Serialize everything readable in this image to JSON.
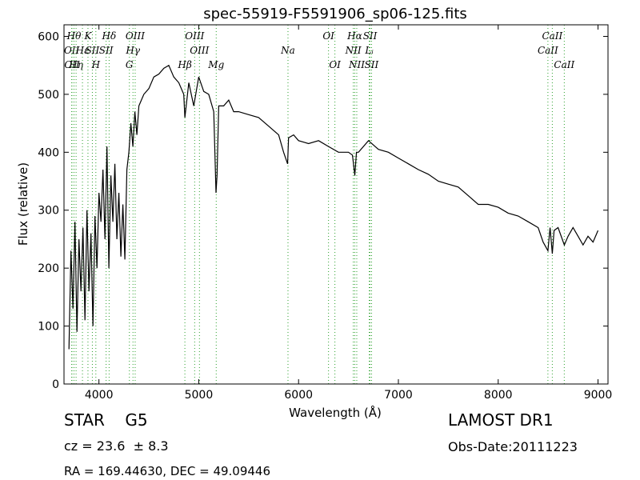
{
  "chart_data": {
    "type": "line",
    "title": "spec-55919-F5591906_sp06-125.fits",
    "xlabel": "Wavelength (Å)",
    "ylabel": "Flux (relative)",
    "xlim": [
      3650,
      9100
    ],
    "ylim": [
      0,
      620
    ],
    "xticks": [
      4000,
      5000,
      6000,
      7000,
      8000,
      9000
    ],
    "yticks": [
      0,
      100,
      200,
      300,
      400,
      500,
      600
    ],
    "grid": false,
    "line_color": "#000000",
    "marker_color": "#2ca02c",
    "spectrum": {
      "x": [
        3700,
        3720,
        3740,
        3760,
        3780,
        3800,
        3820,
        3840,
        3860,
        3880,
        3900,
        3920,
        3940,
        3960,
        3980,
        4000,
        4020,
        4040,
        4060,
        4080,
        4100,
        4120,
        4140,
        4160,
        4180,
        4200,
        4220,
        4240,
        4260,
        4280,
        4300,
        4320,
        4340,
        4360,
        4380,
        4400,
        4450,
        4500,
        4550,
        4600,
        4650,
        4700,
        4750,
        4800,
        4850,
        4861,
        4900,
        4950,
        5000,
        5050,
        5100,
        5150,
        5173,
        5183,
        5200,
        5250,
        5300,
        5350,
        5400,
        5500,
        5600,
        5700,
        5800,
        5850,
        5890,
        5900,
        5950,
        6000,
        6100,
        6200,
        6300,
        6400,
        6500,
        6540,
        6563,
        6580,
        6600,
        6700,
        6800,
        6900,
        7000,
        7100,
        7200,
        7300,
        7400,
        7500,
        7600,
        7700,
        7800,
        7900,
        8000,
        8100,
        8200,
        8300,
        8400,
        8450,
        8498,
        8520,
        8542,
        8560,
        8600,
        8662,
        8700,
        8750,
        8800,
        8850,
        8900,
        8950,
        9000
      ],
      "y": [
        60,
        230,
        130,
        280,
        90,
        250,
        160,
        270,
        110,
        300,
        160,
        260,
        100,
        290,
        200,
        330,
        280,
        370,
        250,
        410,
        200,
        360,
        280,
        380,
        250,
        330,
        220,
        310,
        215,
        370,
        400,
        450,
        410,
        470,
        430,
        480,
        500,
        510,
        530,
        535,
        545,
        550,
        530,
        520,
        500,
        460,
        520,
        480,
        530,
        505,
        500,
        470,
        330,
        360,
        480,
        480,
        490,
        470,
        470,
        465,
        460,
        445,
        430,
        400,
        380,
        425,
        430,
        420,
        415,
        420,
        410,
        400,
        400,
        395,
        360,
        400,
        400,
        420,
        405,
        400,
        390,
        380,
        370,
        362,
        350,
        345,
        340,
        325,
        310,
        310,
        305,
        295,
        290,
        280,
        270,
        245,
        230,
        270,
        225,
        265,
        270,
        240,
        255,
        270,
        255,
        240,
        255,
        245,
        265
      ]
    },
    "lines": [
      {
        "name": "OII",
        "wl": 3727,
        "row": 2
      },
      {
        "name": "OII",
        "wl": 3730,
        "row": 3
      },
      {
        "name": "Hθ",
        "wl": 3750,
        "row": 1
      },
      {
        "name": "Hη",
        "wl": 3771,
        "row": 3
      },
      {
        "name": "Hε",
        "wl": 3835,
        "row": 2
      },
      {
        "name": "K",
        "wl": 3890,
        "row": 1
      },
      {
        "name": "SII",
        "wl": 3934,
        "row": 2
      },
      {
        "name": "H",
        "wl": 3969,
        "row": 3
      },
      {
        "name": "Hδ",
        "wl": 4102,
        "row": 1
      },
      {
        "name": "SII",
        "wl": 4072,
        "row": 2
      },
      {
        "name": "OIII",
        "wl": 4363,
        "row": 1
      },
      {
        "name": "Hγ",
        "wl": 4341,
        "row": 2
      },
      {
        "name": "G",
        "wl": 4305,
        "row": 3
      },
      {
        "name": "OIII",
        "wl": 4959,
        "row": 1
      },
      {
        "name": "OIII",
        "wl": 5007,
        "row": 2
      },
      {
        "name": "Hβ",
        "wl": 4861,
        "row": 3
      },
      {
        "name": "Mg",
        "wl": 5175,
        "row": 3
      },
      {
        "name": "Na",
        "wl": 5894,
        "row": 2
      },
      {
        "name": "OI",
        "wl": 6300,
        "row": 1
      },
      {
        "name": "OI",
        "wl": 6364,
        "row": 3
      },
      {
        "name": "Hα",
        "wl": 6563,
        "row": 1
      },
      {
        "name": "NII",
        "wl": 6548,
        "row": 2
      },
      {
        "name": "NII",
        "wl": 6583,
        "row": 3
      },
      {
        "name": "SII",
        "wl": 6716,
        "row": 1
      },
      {
        "name": "Lᵢ",
        "wl": 6708,
        "row": 2
      },
      {
        "name": "SII",
        "wl": 6731,
        "row": 3
      },
      {
        "name": "CaII",
        "wl": 8498,
        "row": 2
      },
      {
        "name": "CaII",
        "wl": 8542,
        "row": 1
      },
      {
        "name": "CaII",
        "wl": 8662,
        "row": 3
      }
    ]
  },
  "info": {
    "class_label": "STAR    G5",
    "cz": "cz = 23.6  ± 8.3",
    "radec": "RA = 169.44630, DEC = 49.09446",
    "survey": "LAMOST DR1",
    "obs_date": "Obs-Date:20111223"
  }
}
